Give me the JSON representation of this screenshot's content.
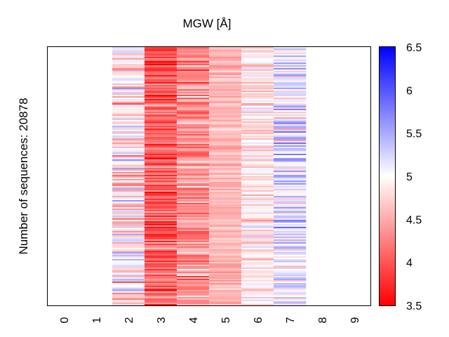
{
  "chart_data": {
    "type": "heatmap",
    "title": "MGW [Å]",
    "ylabel": "Number of sequences: 20878",
    "xlabel": "",
    "x_ticks": [
      "0",
      "1",
      "2",
      "3",
      "4",
      "5",
      "6",
      "7",
      "8",
      "9"
    ],
    "n_rows": 20878,
    "columns_with_data": [
      2,
      3,
      4,
      5,
      6,
      7
    ],
    "column_summary": [
      {
        "position": 0,
        "mean": null
      },
      {
        "position": 1,
        "mean": null
      },
      {
        "position": 2,
        "mean": 4.85,
        "spread": 0.35
      },
      {
        "position": 3,
        "mean": 4.05,
        "spread": 0.25
      },
      {
        "position": 4,
        "mean": 4.35,
        "spread": 0.25
      },
      {
        "position": 5,
        "mean": 4.55,
        "spread": 0.12
      },
      {
        "position": 6,
        "mean": 4.85,
        "spread": 0.2
      },
      {
        "position": 7,
        "mean": 5.2,
        "spread": 0.3
      },
      {
        "position": 8,
        "mean": null
      },
      {
        "position": 9,
        "mean": null
      }
    ],
    "colorbar": {
      "min": 3.5,
      "max": 6.5,
      "center": 5,
      "ticks": [
        "3.5",
        "4",
        "4.5",
        "5",
        "5.5",
        "6",
        "6.5"
      ],
      "colormap": "bwr",
      "low_color": "#ff0000",
      "mid_color": "#ffffff",
      "high_color": "#0000ff"
    }
  }
}
